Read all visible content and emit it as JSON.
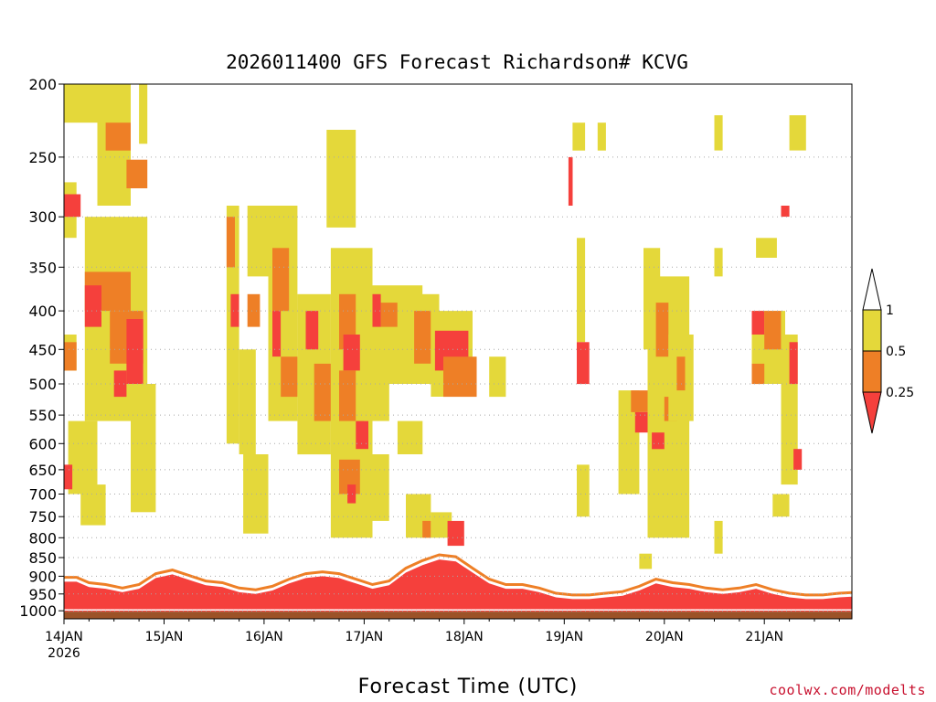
{
  "chart_data": {
    "type": "heatmap",
    "title": "2026011400 GFS Forecast Richardson# KCVG",
    "xlabel": "Forecast Time (UTC)",
    "ylabel": "",
    "credit": "coolwx.com/modelts",
    "x_start_label": "14JAN",
    "x_start_year": "2026",
    "x_tick_labels": [
      "14JAN",
      "15JAN",
      "16JAN",
      "17JAN",
      "18JAN",
      "19JAN",
      "20JAN",
      "21JAN"
    ],
    "y_ticks": [
      200,
      250,
      300,
      350,
      400,
      450,
      500,
      550,
      600,
      650,
      700,
      750,
      800,
      850,
      900,
      950,
      1000
    ],
    "ylim": [
      200,
      1025
    ],
    "y_scale": "log-pressure",
    "xlim_hours": [
      0,
      189
    ],
    "grid": true,
    "legend_placement": "right",
    "legend": {
      "labels": [
        "1",
        "0.5",
        "0.25"
      ],
      "bins": [
        {
          "range": "> 1",
          "color": "#ffffff"
        },
        {
          "range": "0.5 - 1",
          "color": "#e4d83a"
        },
        {
          "range": "0.25 - 0.5",
          "color": "#ee7f26"
        },
        {
          "range": "< 0.25",
          "color": "#f5403c"
        }
      ]
    },
    "colors": {
      "yellow": "#e4d83a",
      "orange": "#ee7f26",
      "red": "#f5403c",
      "ground": "#9c5227"
    },
    "ground_top_hpa": 1003,
    "regions": [
      {
        "level": "y",
        "h": [
          0,
          8
        ],
        "p": [
          200,
          225
        ]
      },
      {
        "level": "y",
        "h": [
          8,
          16
        ],
        "p": [
          200,
          290
        ]
      },
      {
        "level": "o",
        "h": [
          10,
          16
        ],
        "p": [
          225,
          245
        ]
      },
      {
        "level": "o",
        "h": [
          15,
          20
        ],
        "p": [
          252,
          275
        ]
      },
      {
        "level": "y",
        "h": [
          0,
          3
        ],
        "p": [
          270,
          320
        ]
      },
      {
        "level": "r",
        "h": [
          0,
          4
        ],
        "p": [
          280,
          300
        ]
      },
      {
        "level": "y",
        "h": [
          5,
          20
        ],
        "p": [
          300,
          560
        ]
      },
      {
        "level": "o",
        "h": [
          5,
          16
        ],
        "p": [
          355,
          400
        ]
      },
      {
        "level": "r",
        "h": [
          5,
          9
        ],
        "p": [
          370,
          420
        ]
      },
      {
        "level": "o",
        "h": [
          11,
          19
        ],
        "p": [
          400,
          470
        ]
      },
      {
        "level": "r",
        "h": [
          15,
          19
        ],
        "p": [
          410,
          500
        ]
      },
      {
        "level": "r",
        "h": [
          12,
          15
        ],
        "p": [
          480,
          520
        ]
      },
      {
        "level": "y",
        "h": [
          0,
          3
        ],
        "p": [
          430,
          480
        ]
      },
      {
        "level": "o",
        "h": [
          0,
          3
        ],
        "p": [
          440,
          480
        ]
      },
      {
        "level": "y",
        "h": [
          1,
          8
        ],
        "p": [
          560,
          700
        ]
      },
      {
        "level": "r",
        "h": [
          0,
          2
        ],
        "p": [
          640,
          690
        ]
      },
      {
        "level": "y",
        "h": [
          4,
          10
        ],
        "p": [
          680,
          770
        ]
      },
      {
        "level": "y",
        "h": [
          16,
          22
        ],
        "p": [
          500,
          740
        ]
      },
      {
        "level": "y",
        "h": [
          18,
          20
        ],
        "p": [
          200,
          240
        ]
      },
      {
        "level": "y",
        "h": [
          39,
          42
        ],
        "p": [
          290,
          600
        ]
      },
      {
        "level": "o",
        "h": [
          39,
          41
        ],
        "p": [
          300,
          350
        ]
      },
      {
        "level": "r",
        "h": [
          40,
          42
        ],
        "p": [
          380,
          420
        ]
      },
      {
        "level": "y",
        "h": [
          42,
          46
        ],
        "p": [
          450,
          620
        ]
      },
      {
        "level": "y",
        "h": [
          43,
          49
        ],
        "p": [
          620,
          790
        ]
      },
      {
        "level": "y",
        "h": [
          44,
          51
        ],
        "p": [
          290,
          360
        ]
      },
      {
        "level": "o",
        "h": [
          44,
          47
        ],
        "p": [
          380,
          420
        ]
      },
      {
        "level": "y",
        "h": [
          49,
          56
        ],
        "p": [
          290,
          560
        ]
      },
      {
        "level": "o",
        "h": [
          50,
          54
        ],
        "p": [
          330,
          400
        ]
      },
      {
        "level": "r",
        "h": [
          50,
          52
        ],
        "p": [
          400,
          460
        ]
      },
      {
        "level": "o",
        "h": [
          52,
          56
        ],
        "p": [
          460,
          520
        ]
      },
      {
        "level": "y",
        "h": [
          56,
          64
        ],
        "p": [
          380,
          620
        ]
      },
      {
        "level": "r",
        "h": [
          58,
          61
        ],
        "p": [
          400,
          450
        ]
      },
      {
        "level": "o",
        "h": [
          60,
          64
        ],
        "p": [
          470,
          560
        ]
      },
      {
        "level": "y",
        "h": [
          63,
          70
        ],
        "p": [
          230,
          310
        ]
      },
      {
        "level": "y",
        "h": [
          64,
          74
        ],
        "p": [
          330,
          800
        ]
      },
      {
        "level": "o",
        "h": [
          66,
          70
        ],
        "p": [
          380,
          450
        ]
      },
      {
        "level": "r",
        "h": [
          67,
          71
        ],
        "p": [
          430,
          480
        ]
      },
      {
        "level": "o",
        "h": [
          66,
          70
        ],
        "p": [
          480,
          560
        ]
      },
      {
        "level": "o",
        "h": [
          66,
          72
        ],
        "p": [
          630,
          700
        ]
      },
      {
        "level": "r",
        "h": [
          68,
          70
        ],
        "p": [
          680,
          720
        ]
      },
      {
        "level": "r",
        "h": [
          70,
          73
        ],
        "p": [
          560,
          610
        ]
      },
      {
        "level": "y",
        "h": [
          71,
          78
        ],
        "p": [
          620,
          760
        ]
      },
      {
        "level": "y",
        "h": [
          72,
          78
        ],
        "p": [
          420,
          560
        ]
      },
      {
        "level": "y",
        "h": [
          74,
          86
        ],
        "p": [
          370,
          500
        ]
      },
      {
        "level": "o",
        "h": [
          76,
          80
        ],
        "p": [
          390,
          420
        ]
      },
      {
        "level": "r",
        "h": [
          74,
          76
        ],
        "p": [
          380,
          420
        ]
      },
      {
        "level": "y",
        "h": [
          80,
          90
        ],
        "p": [
          380,
          500
        ]
      },
      {
        "level": "o",
        "h": [
          84,
          88
        ],
        "p": [
          400,
          470
        ]
      },
      {
        "level": "y",
        "h": [
          88,
          98
        ],
        "p": [
          400,
          520
        ]
      },
      {
        "level": "r",
        "h": [
          89,
          97
        ],
        "p": [
          425,
          480
        ]
      },
      {
        "level": "o",
        "h": [
          91,
          99
        ],
        "p": [
          460,
          520
        ]
      },
      {
        "level": "y",
        "h": [
          80,
          86
        ],
        "p": [
          560,
          620
        ]
      },
      {
        "level": "y",
        "h": [
          82,
          88
        ],
        "p": [
          700,
          800
        ]
      },
      {
        "level": "o",
        "h": [
          86,
          88
        ],
        "p": [
          760,
          800
        ]
      },
      {
        "level": "y",
        "h": [
          88,
          93
        ],
        "p": [
          740,
          800
        ]
      },
      {
        "level": "r",
        "h": [
          92,
          96
        ],
        "p": [
          760,
          820
        ]
      },
      {
        "level": "y",
        "h": [
          102,
          106
        ],
        "p": [
          460,
          520
        ]
      },
      {
        "level": "y",
        "h": [
          122,
          125
        ],
        "p": [
          225,
          245
        ]
      },
      {
        "level": "r",
        "h": [
          121,
          122
        ],
        "p": [
          250,
          290
        ]
      },
      {
        "level": "y",
        "h": [
          123,
          125
        ],
        "p": [
          320,
          440
        ]
      },
      {
        "level": "r",
        "h": [
          123,
          126
        ],
        "p": [
          440,
          500
        ]
      },
      {
        "level": "y",
        "h": [
          123,
          126
        ],
        "p": [
          640,
          750
        ]
      },
      {
        "level": "y",
        "h": [
          128,
          130
        ],
        "p": [
          225,
          245
        ]
      },
      {
        "level": "y",
        "h": [
          133,
          138
        ],
        "p": [
          510,
          700
        ]
      },
      {
        "level": "o",
        "h": [
          136,
          140
        ],
        "p": [
          510,
          545
        ]
      },
      {
        "level": "r",
        "h": [
          137,
          140
        ],
        "p": [
          545,
          580
        ]
      },
      {
        "level": "y",
        "h": [
          139,
          143
        ],
        "p": [
          330,
          450
        ]
      },
      {
        "level": "y",
        "h": [
          140,
          150
        ],
        "p": [
          360,
          800
        ]
      },
      {
        "level": "o",
        "h": [
          142,
          145
        ],
        "p": [
          390,
          460
        ]
      },
      {
        "level": "r",
        "h": [
          141,
          144
        ],
        "p": [
          580,
          610
        ]
      },
      {
        "level": "o",
        "h": [
          144,
          147
        ],
        "p": [
          520,
          560
        ]
      },
      {
        "level": "y",
        "h": [
          145,
          151
        ],
        "p": [
          430,
          560
        ]
      },
      {
        "level": "o",
        "h": [
          147,
          149
        ],
        "p": [
          460,
          510
        ]
      },
      {
        "level": "y",
        "h": [
          138,
          141
        ],
        "p": [
          840,
          880
        ]
      },
      {
        "level": "y",
        "h": [
          156,
          158
        ],
        "p": [
          330,
          360
        ]
      },
      {
        "level": "y",
        "h": [
          156,
          158
        ],
        "p": [
          220,
          245
        ]
      },
      {
        "level": "y",
        "h": [
          156,
          158
        ],
        "p": [
          760,
          840
        ]
      },
      {
        "level": "y",
        "h": [
          166,
          171
        ],
        "p": [
          320,
          340
        ]
      },
      {
        "level": "y",
        "h": [
          165,
          173
        ],
        "p": [
          400,
          500
        ]
      },
      {
        "level": "r",
        "h": [
          165,
          168
        ],
        "p": [
          400,
          430
        ]
      },
      {
        "level": "o",
        "h": [
          168,
          172
        ],
        "p": [
          400,
          450
        ]
      },
      {
        "level": "o",
        "h": [
          165,
          168
        ],
        "p": [
          470,
          500
        ]
      },
      {
        "level": "r",
        "h": [
          172,
          174
        ],
        "p": [
          290,
          300
        ]
      },
      {
        "level": "y",
        "h": [
          174,
          178
        ],
        "p": [
          220,
          245
        ]
      },
      {
        "level": "y",
        "h": [
          172,
          176
        ],
        "p": [
          430,
          680
        ]
      },
      {
        "level": "r",
        "h": [
          174,
          176
        ],
        "p": [
          440,
          500
        ]
      },
      {
        "level": "r",
        "h": [
          175,
          177
        ],
        "p": [
          610,
          650
        ]
      },
      {
        "level": "y",
        "h": [
          170,
          174
        ],
        "p": [
          700,
          750
        ]
      }
    ],
    "boundary_layer": [
      {
        "h": 0,
        "p": 915
      },
      {
        "h": 3,
        "p": 915
      },
      {
        "h": 6,
        "p": 930
      },
      {
        "h": 10,
        "p": 935
      },
      {
        "h": 14,
        "p": 945
      },
      {
        "h": 18,
        "p": 935
      },
      {
        "h": 22,
        "p": 905
      },
      {
        "h": 26,
        "p": 895
      },
      {
        "h": 30,
        "p": 910
      },
      {
        "h": 34,
        "p": 925
      },
      {
        "h": 38,
        "p": 930
      },
      {
        "h": 42,
        "p": 945
      },
      {
        "h": 46,
        "p": 950
      },
      {
        "h": 50,
        "p": 940
      },
      {
        "h": 54,
        "p": 920
      },
      {
        "h": 58,
        "p": 905
      },
      {
        "h": 62,
        "p": 900
      },
      {
        "h": 66,
        "p": 905
      },
      {
        "h": 70,
        "p": 920
      },
      {
        "h": 74,
        "p": 935
      },
      {
        "h": 78,
        "p": 925
      },
      {
        "h": 82,
        "p": 890
      },
      {
        "h": 86,
        "p": 870
      },
      {
        "h": 90,
        "p": 855
      },
      {
        "h": 94,
        "p": 860
      },
      {
        "h": 98,
        "p": 890
      },
      {
        "h": 102,
        "p": 920
      },
      {
        "h": 106,
        "p": 935
      },
      {
        "h": 110,
        "p": 935
      },
      {
        "h": 114,
        "p": 945
      },
      {
        "h": 118,
        "p": 960
      },
      {
        "h": 122,
        "p": 965
      },
      {
        "h": 126,
        "p": 965
      },
      {
        "h": 130,
        "p": 960
      },
      {
        "h": 134,
        "p": 955
      },
      {
        "h": 138,
        "p": 940
      },
      {
        "h": 142,
        "p": 920
      },
      {
        "h": 146,
        "p": 930
      },
      {
        "h": 150,
        "p": 935
      },
      {
        "h": 154,
        "p": 945
      },
      {
        "h": 158,
        "p": 950
      },
      {
        "h": 162,
        "p": 945
      },
      {
        "h": 166,
        "p": 935
      },
      {
        "h": 170,
        "p": 950
      },
      {
        "h": 174,
        "p": 960
      },
      {
        "h": 178,
        "p": 965
      },
      {
        "h": 182,
        "p": 965
      },
      {
        "h": 186,
        "p": 960
      },
      {
        "h": 189,
        "p": 958
      }
    ]
  }
}
